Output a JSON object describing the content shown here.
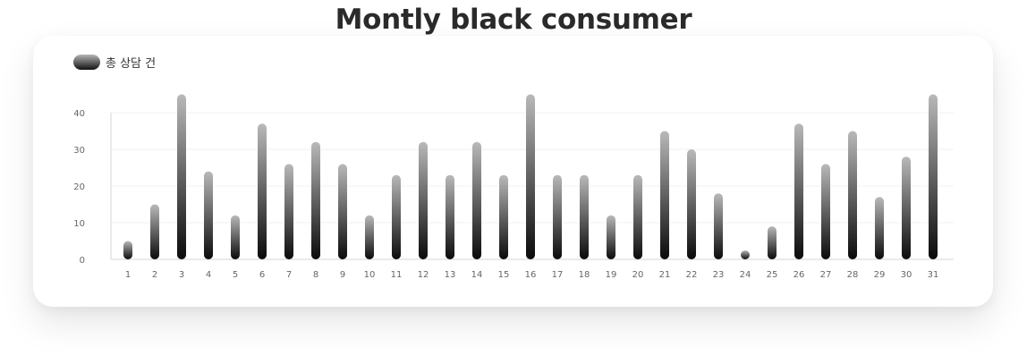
{
  "chart_data": {
    "type": "bar",
    "title": "Montly black consumer",
    "legend": [
      {
        "name": "총 상담 건",
        "color": "#111111"
      }
    ],
    "categories": [
      "1",
      "2",
      "3",
      "4",
      "5",
      "6",
      "7",
      "8",
      "9",
      "10",
      "11",
      "12",
      "13",
      "14",
      "15",
      "16",
      "17",
      "18",
      "19",
      "20",
      "21",
      "22",
      "23",
      "24",
      "25",
      "26",
      "27",
      "28",
      "29",
      "30",
      "31"
    ],
    "series": [
      {
        "name": "총 상담 건",
        "values": [
          5,
          15,
          45,
          24,
          12,
          37,
          26,
          32,
          26,
          12,
          23,
          32,
          23,
          32,
          23,
          45,
          23,
          23,
          12,
          23,
          35,
          30,
          18,
          2,
          9,
          37,
          26,
          35,
          17,
          28,
          45
        ]
      }
    ],
    "yticks": [
      "0",
      "10",
      "20",
      "30",
      "40"
    ],
    "ylim": [
      0,
      45
    ],
    "grid": true,
    "legend_position": "top-left",
    "bar_gradient": {
      "top": "#b9b9b9",
      "bottom": "#0a0a0a"
    },
    "axis_color": "#e3e3e3",
    "grid_color": "#f2f2f2"
  }
}
